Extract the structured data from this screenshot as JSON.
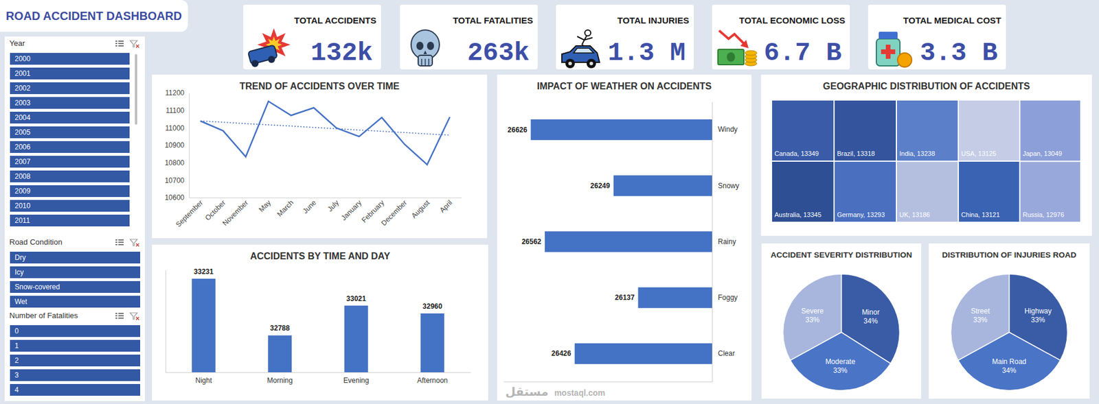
{
  "title": "ROAD ACCIDENT DASHBOARD",
  "kpis": [
    {
      "title": "TOTAL ACCIDENTS",
      "value": "132k"
    },
    {
      "title": "TOTAL FATALITIES",
      "value": "263k"
    },
    {
      "title": "TOTAL INJURIES",
      "value": "1.3 M"
    },
    {
      "title": "TOTAL ECONOMIC LOSS",
      "value": "6.7 B"
    },
    {
      "title": "TOTAL MEDICAL COST",
      "value": "3.3 B"
    }
  ],
  "slicers": [
    {
      "title": "Year",
      "items": [
        "2000",
        "2001",
        "2002",
        "2003",
        "2004",
        "2005",
        "2006",
        "2007",
        "2008",
        "2009",
        "2010",
        "2011"
      ]
    },
    {
      "title": "Road Condition",
      "items": [
        "Dry",
        "Icy",
        "Snow-covered",
        "Wet"
      ]
    },
    {
      "title": "Number of Fatalities",
      "items": [
        "0",
        "1",
        "2",
        "3",
        "4"
      ]
    }
  ],
  "watermark": [
    "مستقل",
    "mostaql.com"
  ],
  "chart_data": [
    {
      "type": "line",
      "title": "TREND OF ACCIDENTS OVER TIME",
      "categories": [
        "September",
        "October",
        "November",
        "May",
        "March",
        "June",
        "July",
        "January",
        "February",
        "December",
        "August",
        "April"
      ],
      "series": [
        {
          "values": [
            11039,
            10983,
            10834,
            11152,
            11071,
            11115,
            10999,
            10950,
            11059,
            10906,
            10789,
            11062
          ],
          "color": "#4472c4",
          "line_style": "solid"
        },
        {
          "values": [
            11039,
            11032,
            11024,
            11017,
            11010,
            11002,
            10995,
            10987,
            10980,
            10973,
            10965,
            10958
          ],
          "color": "#4472c4",
          "line_style": "dotted"
        }
      ],
      "ylim": [
        10600,
        11200
      ],
      "yticks": [
        10600,
        10700,
        10800,
        10900,
        11000,
        11100,
        11200
      ],
      "grid": false
    },
    {
      "type": "bar",
      "title": "ACCIDENTS BY TIME AND DAY",
      "categories": [
        "Night",
        "Morning",
        "Evening",
        "Afternoon"
      ],
      "values": [
        33231,
        32788,
        33021,
        32960
      ],
      "color": "#4472c4",
      "ylim": [
        32500,
        33300
      ],
      "data_labels": true,
      "tick_labels": "x",
      "grid": false
    },
    {
      "type": "bar",
      "orientation": "horizontal",
      "title": "IMPACT OF WEATHER ON ACCIDENTS",
      "categories": [
        "Windy",
        "Snowy",
        "Rainy",
        "Foggy",
        "Clear"
      ],
      "values": [
        26626,
        26249,
        26562,
        26137,
        26426
      ],
      "color": "#4472c4",
      "xlim": [
        25800,
        26750
      ],
      "data_labels": true,
      "tick_labels": "y",
      "grid": false
    },
    {
      "type": "treemap",
      "title": "GEOGRAPHIC DISTRIBUTION OF ACCIDENTS",
      "categories": [
        "Canada",
        "Australia",
        "Brazil",
        "Germany",
        "India",
        "UK",
        "USA",
        "China",
        "Japan",
        "Russia"
      ],
      "values": [
        13349,
        13345,
        13318,
        13293,
        13238,
        13186,
        13125,
        13121,
        13049,
        12976
      ],
      "value_labels": [
        "Canada, 13349",
        "Australia, 13345",
        "Brazil, 13318",
        "Germany, 13293",
        "India, 13238",
        "UK, 13186",
        "USA, 13125",
        "China, 13121",
        "Japan, 13049",
        "Russia, 12976"
      ],
      "colors": [
        "#3a5ca8",
        "#2f4f94",
        "#34559e",
        "#4a6fbf",
        "#5b7fc9",
        "#b4bfe0",
        "#c5cce6",
        "#3b63b3",
        "#8c9fd8",
        "#98a8db"
      ],
      "data_labels": true
    },
    {
      "type": "pie",
      "title": "ACCIDENT SEVERITY DISTRIBUTION",
      "categories": [
        "Minor",
        "Moderate",
        "Severe"
      ],
      "values": [
        34,
        33,
        33
      ],
      "value_labels": [
        "34%",
        "33%",
        "33%"
      ],
      "colors": [
        "#3a5ca6",
        "#4a74c6",
        "#a8b6dd"
      ],
      "data_labels": true
    },
    {
      "type": "pie",
      "title": "DISTRIBUTION OF INJURIES ROAD",
      "categories": [
        "Highway",
        "Main Road",
        "Street"
      ],
      "values": [
        33,
        34,
        33
      ],
      "value_labels": [
        "33%",
        "34%",
        "33%"
      ],
      "colors": [
        "#3a5ca6",
        "#4a74c6",
        "#a8b6dd"
      ],
      "data_labels": true
    }
  ]
}
